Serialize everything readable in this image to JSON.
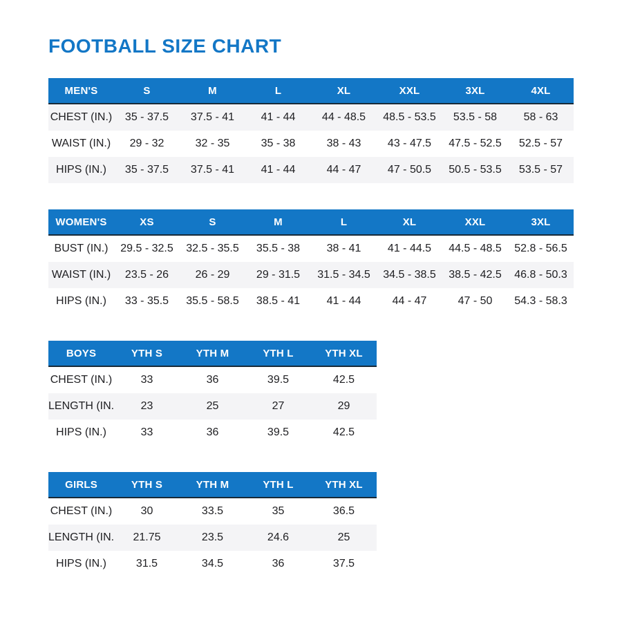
{
  "page": {
    "title": "FOOTBALL SIZE CHART"
  },
  "colors": {
    "accent_blue": "#1377c6",
    "header_text": "#ffffff",
    "header_bottom_border": "#182a38",
    "row_stripe": "#f4f4f6",
    "body_text": "#202023",
    "background": "#ffffff"
  },
  "chart_data": [
    {
      "type": "table",
      "title": "MEN'S",
      "columns": [
        "MEN'S",
        "S",
        "M",
        "L",
        "XL",
        "XXL",
        "3XL",
        "4XL"
      ],
      "rows": [
        [
          "CHEST (IN.)",
          "35 - 37.5",
          "37.5 - 41",
          "41 - 44",
          "44 - 48.5",
          "48.5 - 53.5",
          "53.5 - 58",
          "58 - 63"
        ],
        [
          "WAIST (IN.)",
          "29 - 32",
          "32 - 35",
          "35 - 38",
          "38 - 43",
          "43 - 47.5",
          "47.5 - 52.5",
          "52.5 - 57"
        ],
        [
          "HIPS (IN.)",
          "35 - 37.5",
          "37.5 - 41",
          "41 - 44",
          "44 - 47",
          "47 - 50.5",
          "50.5 - 53.5",
          "53.5 - 57"
        ]
      ]
    },
    {
      "type": "table",
      "title": "WOMEN'S",
      "columns": [
        "WOMEN'S",
        "XS",
        "S",
        "M",
        "L",
        "XL",
        "XXL",
        "3XL"
      ],
      "rows": [
        [
          "BUST (IN.)",
          "29.5 - 32.5",
          "32.5 - 35.5",
          "35.5 - 38",
          "38 - 41",
          "41 - 44.5",
          "44.5 - 48.5",
          "52.8 - 56.5"
        ],
        [
          "WAIST (IN.)",
          "23.5 - 26",
          "26 - 29",
          "29 - 31.5",
          "31.5 - 34.5",
          "34.5 - 38.5",
          "38.5 - 42.5",
          "46.8 - 50.3"
        ],
        [
          "HIPS (IN.)",
          "33 - 35.5",
          "35.5 - 58.5",
          "38.5 - 41",
          "41 - 44",
          "44 - 47",
          "47 - 50",
          "54.3 - 58.3"
        ]
      ]
    },
    {
      "type": "table",
      "title": "BOYS",
      "columns": [
        "BOYS",
        "YTH S",
        "YTH M",
        "YTH L",
        "YTH XL"
      ],
      "rows": [
        [
          "CHEST (IN.)",
          "33",
          "36",
          "39.5",
          "42.5"
        ],
        [
          "LENGTH (IN.)",
          "23",
          "25",
          "27",
          "29"
        ],
        [
          "HIPS (IN.)",
          "33",
          "36",
          "39.5",
          "42.5"
        ]
      ]
    },
    {
      "type": "table",
      "title": "GIRLS",
      "columns": [
        "GIRLS",
        "YTH S",
        "YTH M",
        "YTH L",
        "YTH XL"
      ],
      "rows": [
        [
          "CHEST (IN.)",
          "30",
          "33.5",
          "35",
          "36.5"
        ],
        [
          "LENGTH (IN.)",
          "21.75",
          "23.5",
          "24.6",
          "25"
        ],
        [
          "HIPS (IN.)",
          "31.5",
          "34.5",
          "36",
          "37.5"
        ]
      ]
    }
  ]
}
